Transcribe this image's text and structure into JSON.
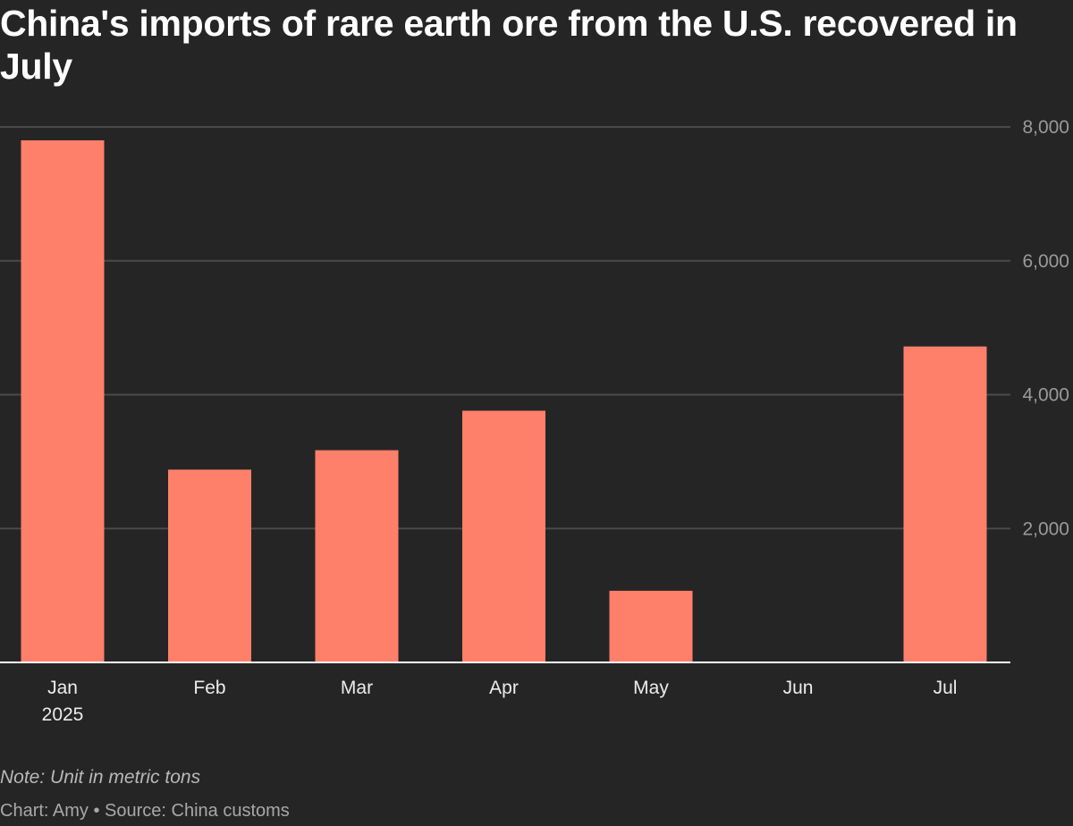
{
  "title": "China's imports of rare earth ore from the U.S. recovered in July",
  "note": "Note: Unit in metric tons",
  "credit": "Chart: Amy • Source: China customs",
  "colors": {
    "background": "#252525",
    "bar": "#ff806a",
    "gridline": "#4a4a4a",
    "baseline": "#ffffff"
  },
  "chart_data": {
    "type": "bar",
    "title": "China's imports of rare earth ore from the U.S. recovered in July",
    "categories": [
      "Jan",
      "Feb",
      "Mar",
      "Apr",
      "May",
      "Jun",
      "Jul"
    ],
    "category_sublabels": [
      "2025",
      "",
      "",
      "",
      "",
      "",
      ""
    ],
    "values": [
      7800,
      2880,
      3170,
      3760,
      1070,
      0,
      4720
    ],
    "xlabel": "",
    "ylabel": "",
    "unit": "metric tons",
    "ylim": [
      0,
      8000
    ],
    "yticks": [
      2000,
      4000,
      6000,
      8000
    ],
    "ytick_labels": [
      "2,000",
      "4,000",
      "6,000",
      "8,000"
    ],
    "grid": true,
    "y_axis_side": "right"
  }
}
